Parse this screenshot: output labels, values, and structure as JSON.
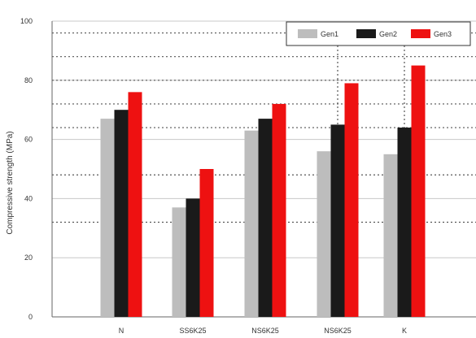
{
  "chart_data": {
    "type": "bar",
    "categories": [
      "N",
      "SS6K25",
      "NS6K25",
      "NS6K25",
      "K"
    ],
    "series": [
      {
        "name": "Gen1",
        "color": "#bdbdbd",
        "values": [
          67,
          37,
          63,
          56,
          55
        ]
      },
      {
        "name": "Gen2",
        "color": "#1a1a1a",
        "values": [
          70,
          40,
          67,
          65,
          64
        ]
      },
      {
        "name": "Gen3",
        "color": "#ee1111",
        "values": [
          76,
          50,
          72,
          79,
          85
        ]
      }
    ],
    "title": "",
    "xlabel": "",
    "ylabel": "Compressive strength (MPa)",
    "ylim": [
      0,
      100
    ],
    "yticks": [
      0,
      20,
      40,
      60,
      80,
      100
    ],
    "ytick_labels": [
      "0",
      "20",
      "40",
      "60",
      "80",
      "100"
    ],
    "grid_major_y": [
      20,
      40,
      60,
      80,
      100
    ],
    "grid_minor_y": [
      32,
      48,
      64,
      72,
      80,
      88,
      96
    ],
    "legend_position": "top-right",
    "grid": true
  }
}
